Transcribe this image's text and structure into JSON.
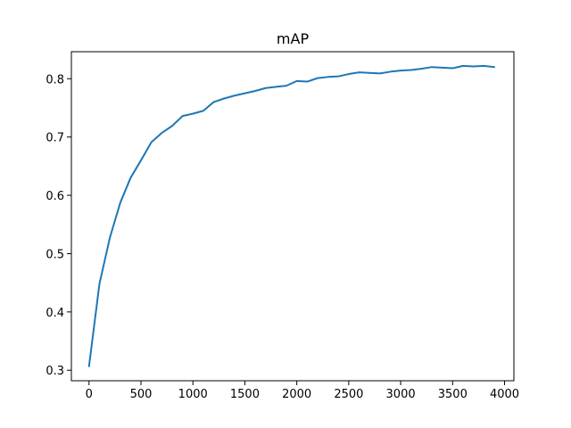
{
  "chart_data": {
    "type": "line",
    "title": "mAP",
    "xlabel": "",
    "ylabel": "",
    "xlim": [
      -170,
      4090
    ],
    "ylim": [
      0.282,
      0.8463
    ],
    "grid": false,
    "xticks": [
      0,
      500,
      1000,
      1500,
      2000,
      2500,
      3000,
      3500,
      4000
    ],
    "xtick_labels": [
      "0",
      "500",
      "1000",
      "1500",
      "2000",
      "2500",
      "3000",
      "3500",
      "4000"
    ],
    "yticks": [
      0.3,
      0.4,
      0.5,
      0.6,
      0.7,
      0.8
    ],
    "ytick_labels": [
      "0.3",
      "0.4",
      "0.5",
      "0.6",
      "0.7",
      "0.8"
    ],
    "series": [
      {
        "color": "#1f77b4",
        "x": [
          0,
          100,
          200,
          300,
          400,
          500,
          600,
          700,
          800,
          900,
          1000,
          1100,
          1200,
          1300,
          1400,
          1500,
          1600,
          1700,
          1800,
          1900,
          2000,
          2100,
          2200,
          2300,
          2400,
          2500,
          2600,
          2700,
          2800,
          2900,
          3000,
          3100,
          3200,
          3300,
          3400,
          3500,
          3600,
          3700,
          3800,
          3900
        ],
        "y": [
          0.307,
          0.448,
          0.527,
          0.587,
          0.63,
          0.66,
          0.691,
          0.707,
          0.719,
          0.736,
          0.74,
          0.745,
          0.76,
          0.766,
          0.771,
          0.775,
          0.779,
          0.784,
          0.786,
          0.788,
          0.796,
          0.795,
          0.801,
          0.803,
          0.804,
          0.808,
          0.811,
          0.81,
          0.809,
          0.812,
          0.814,
          0.815,
          0.817,
          0.82,
          0.819,
          0.818,
          0.822,
          0.821,
          0.822,
          0.82
        ]
      }
    ]
  }
}
